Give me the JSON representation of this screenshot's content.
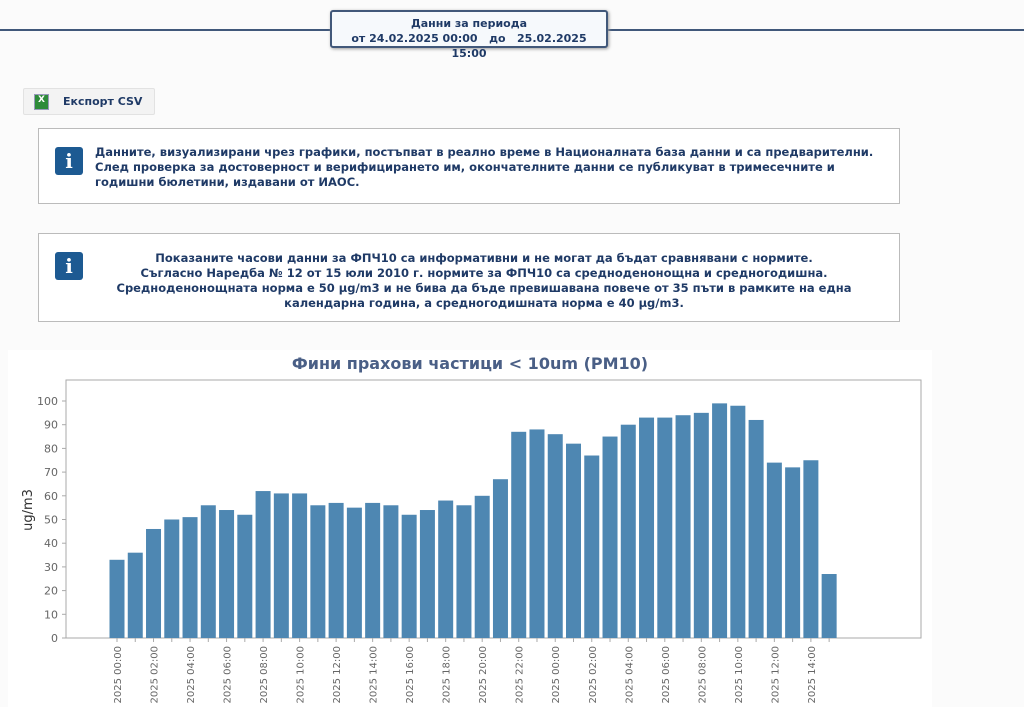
{
  "period": {
    "title": "Данни за периода",
    "from_label": "от",
    "from": "24.02.2025 00:00",
    "to_label": "до",
    "to": "25.02.2025 15:00"
  },
  "export": {
    "label": "Експорт CSV",
    "icon": "excel-icon"
  },
  "info1": {
    "lines": [
      "Данните, визуализирани чрез графики, постъпват в реално време в Националната база данни и са предварителни.",
      "След проверка за достоверност и верифицирането им, окончателните данни се публикуват в тримесечните и",
      "годишни бюлетини, издавани от ИАОС."
    ]
  },
  "info2": {
    "lines": [
      "Показаните часови данни за ФПЧ10 са информативни и не могат да бъдат сравнявани с нормите.",
      "Съгласно Наредба № 12 от 15 юли 2010 г. нормите за ФПЧ10 са средноденонощна и средногодишна.",
      "Средноденонощната норма е 50 µg/m3 и не бива да бъде превишавана повече от 35 пъти в рамките на една",
      "календарна година, а средногодишната норма е 40 µg/m3."
    ]
  },
  "chart_data": {
    "type": "bar",
    "title": "Фини прахови частици < 10um (PM10)",
    "xlabel": "",
    "ylabel": "ug/m3",
    "ylim": [
      0,
      100
    ],
    "yticks": [
      0,
      10,
      20,
      30,
      40,
      50,
      60,
      70,
      80,
      90,
      100
    ],
    "xtick_labels": [
      "2025 00:00",
      "2025 02:00",
      "2025 04:00",
      "2025 06:00",
      "2025 08:00",
      "2025 10:00",
      "2025 12:00",
      "2025 14:00",
      "2025 16:00",
      "2025 18:00",
      "2025 20:00",
      "2025 22:00",
      "2025 00:00",
      "2025 02:00",
      "2025 04:00",
      "2025 06:00",
      "2025 08:00",
      "2025 10:00",
      "2025 12:00",
      "2025 14:00"
    ],
    "values": [
      33,
      36,
      46,
      50,
      51,
      56,
      54,
      52,
      62,
      61,
      61,
      56,
      57,
      55,
      57,
      56,
      52,
      54,
      58,
      56,
      60,
      67,
      87,
      88,
      86,
      82,
      77,
      85,
      90,
      93,
      93,
      94,
      95,
      99,
      98,
      92,
      74,
      72,
      75,
      27
    ],
    "color": "#4e87b2"
  }
}
